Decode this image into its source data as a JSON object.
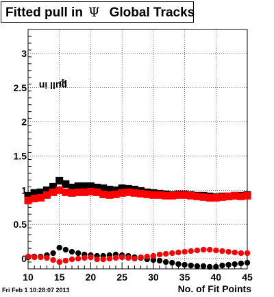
{
  "chart_data": {
    "type": "scatter",
    "title": "Fitted pull in Ψ Global Tracks",
    "title_parts": {
      "before": "Fitted pull in",
      "symbol": "Ψ",
      "after": "Global Tracks"
    },
    "xlabel": "No. of Fit Points",
    "ylabel": "pull in Ψ",
    "ylabel_parts": {
      "text": "pull in",
      "symbol": "Ψ"
    },
    "xlim": [
      10,
      45
    ],
    "ylim": [
      -0.15,
      3.35
    ],
    "x_ticks": [
      10,
      15,
      20,
      25,
      30,
      35,
      40,
      45
    ],
    "y_ticks": [
      0,
      0.5,
      1,
      1.5,
      2,
      2.5,
      3
    ],
    "y_tick_labels": [
      "0",
      "0.5",
      "1",
      "1.5",
      "2",
      "2.5",
      "3"
    ],
    "grid": true,
    "timestamp": "Fri Feb  1 10:28:07 2013",
    "series": [
      {
        "color": "#000000",
        "marker": "square",
        "x": [
          10,
          11,
          12,
          13,
          14,
          15,
          16,
          17,
          18,
          19,
          20,
          21,
          22,
          23,
          24,
          25,
          26,
          27,
          28,
          29,
          30,
          31,
          32,
          33,
          34,
          35,
          36,
          37,
          38,
          39,
          40,
          41,
          42,
          43,
          44,
          45
        ],
        "y": [
          0.92,
          0.96,
          0.97,
          1.0,
          1.05,
          1.14,
          1.09,
          1.04,
          1.06,
          1.06,
          1.06,
          1.04,
          1.03,
          1.01,
          1.0,
          1.03,
          1.02,
          1.01,
          0.99,
          0.97,
          0.96,
          0.95,
          0.94,
          0.93,
          0.94,
          0.94,
          0.93,
          0.92,
          0.92,
          0.91,
          0.9,
          0.91,
          0.91,
          0.92,
          0.92,
          0.93
        ]
      },
      {
        "color": "#ff0000",
        "marker": "square",
        "x": [
          10,
          11,
          12,
          13,
          14,
          15,
          16,
          17,
          18,
          19,
          20,
          21,
          22,
          23,
          24,
          25,
          26,
          27,
          28,
          29,
          30,
          31,
          32,
          33,
          34,
          35,
          36,
          37,
          38,
          39,
          40,
          41,
          42,
          43,
          44,
          45
        ],
        "y": [
          0.85,
          0.88,
          0.89,
          0.93,
          0.97,
          1.0,
          0.97,
          0.96,
          0.97,
          0.97,
          0.98,
          0.97,
          0.94,
          0.93,
          0.94,
          0.96,
          0.97,
          0.96,
          0.95,
          0.94,
          0.93,
          0.93,
          0.92,
          0.92,
          0.93,
          0.93,
          0.92,
          0.91,
          0.9,
          0.89,
          0.89,
          0.9,
          0.91,
          0.92,
          0.91,
          0.92
        ]
      },
      {
        "color": "#000000",
        "marker": "circle",
        "x": [
          10,
          11,
          12,
          13,
          14,
          15,
          16,
          17,
          18,
          19,
          20,
          21,
          22,
          23,
          24,
          25,
          26,
          27,
          28,
          29,
          30,
          31,
          32,
          33,
          34,
          35,
          36,
          37,
          38,
          39,
          40,
          41,
          42,
          43,
          44,
          45
        ],
        "y": [
          0.02,
          0.03,
          0.03,
          0.05,
          0.08,
          0.16,
          0.13,
          0.1,
          0.08,
          0.06,
          0.05,
          0.04,
          0.04,
          0.05,
          0.06,
          0.05,
          0.04,
          0.02,
          0.01,
          -0.01,
          -0.02,
          -0.03,
          -0.05,
          -0.06,
          -0.08,
          -0.09,
          -0.1,
          -0.11,
          -0.11,
          -0.12,
          -0.12,
          -0.1,
          -0.09,
          -0.08,
          -0.07,
          -0.06
        ]
      },
      {
        "color": "#ff0000",
        "marker": "circle",
        "x": [
          10,
          11,
          12,
          13,
          14,
          15,
          16,
          17,
          18,
          19,
          20,
          21,
          22,
          23,
          24,
          25,
          26,
          27,
          28,
          29,
          30,
          31,
          32,
          33,
          34,
          35,
          36,
          37,
          38,
          39,
          40,
          41,
          42,
          43,
          44,
          45
        ],
        "y": [
          0.03,
          0.02,
          0.02,
          0.01,
          -0.02,
          -0.05,
          -0.03,
          -0.01,
          0.0,
          0.01,
          0.02,
          -0.01,
          -0.01,
          0.0,
          0.01,
          0.02,
          0.01,
          0.0,
          0.02,
          0.03,
          0.04,
          0.06,
          0.07,
          0.08,
          0.09,
          0.1,
          0.11,
          0.12,
          0.13,
          0.13,
          0.12,
          0.11,
          0.1,
          0.09,
          0.08,
          0.08
        ]
      }
    ]
  }
}
